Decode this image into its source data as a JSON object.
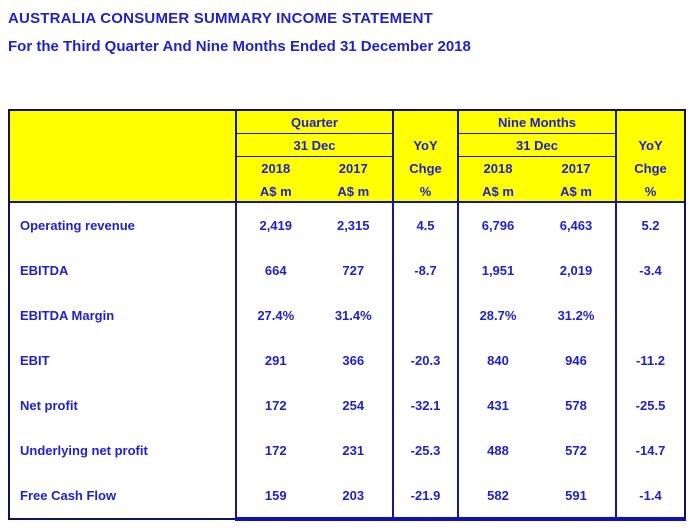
{
  "page": {
    "title": "AUSTRALIA CONSUMER SUMMARY INCOME STATEMENT",
    "subtitle": "For the Third Quarter And Nine Months Ended 31 December 2018"
  },
  "colors": {
    "header_background": "#FFFF00",
    "text_blue": "#2121CC",
    "table_line_blue": "#16169B",
    "bottom_accent_blue": "#0F0FBE"
  },
  "table": {
    "header": {
      "quarter": {
        "group": "Quarter",
        "period": "31 Dec",
        "year1": "2018",
        "year2": "2017",
        "unit1": "A$ m",
        "unit2": "A$ m"
      },
      "yoy_quarter": {
        "l1": "YoY",
        "l2": "Chge",
        "l3": "%"
      },
      "nine_months": {
        "group": "Nine Months",
        "period": "31 Dec",
        "year1": "2018",
        "year2": "2017",
        "unit1": "A$ m",
        "unit2": "A$ m"
      },
      "yoy_nine_months": {
        "l1": "YoY",
        "l2": "Chge",
        "l3": "%"
      }
    },
    "rows": [
      {
        "label": "Operating revenue",
        "q2018": "2,419",
        "q2017": "2,315",
        "q_yoy": "4.5",
        "n2018": "6,796",
        "n2017": "6,463",
        "n_yoy": "5.2"
      },
      {
        "label": "EBITDA",
        "q2018": "664",
        "q2017": "727",
        "q_yoy": "-8.7",
        "n2018": "1,951",
        "n2017": "2,019",
        "n_yoy": "-3.4"
      },
      {
        "label": "EBITDA Margin",
        "q2018": "27.4%",
        "q2017": "31.4%",
        "q_yoy": "",
        "n2018": "28.7%",
        "n2017": "31.2%",
        "n_yoy": ""
      },
      {
        "label": "EBIT",
        "q2018": "291",
        "q2017": "366",
        "q_yoy": "-20.3",
        "n2018": "840",
        "n2017": "946",
        "n_yoy": "-11.2"
      },
      {
        "label": "Net profit",
        "q2018": "172",
        "q2017": "254",
        "q_yoy": "-32.1",
        "n2018": "431",
        "n2017": "578",
        "n_yoy": "-25.5"
      },
      {
        "label": "Underlying net profit",
        "q2018": "172",
        "q2017": "231",
        "q_yoy": "-25.3",
        "n2018": "488",
        "n2017": "572",
        "n_yoy": "-14.7"
      },
      {
        "label": "Free Cash Flow",
        "q2018": "159",
        "q2017": "203",
        "q_yoy": "-21.9",
        "n2018": "582",
        "n2017": "591",
        "n_yoy": "-1.4"
      }
    ]
  }
}
